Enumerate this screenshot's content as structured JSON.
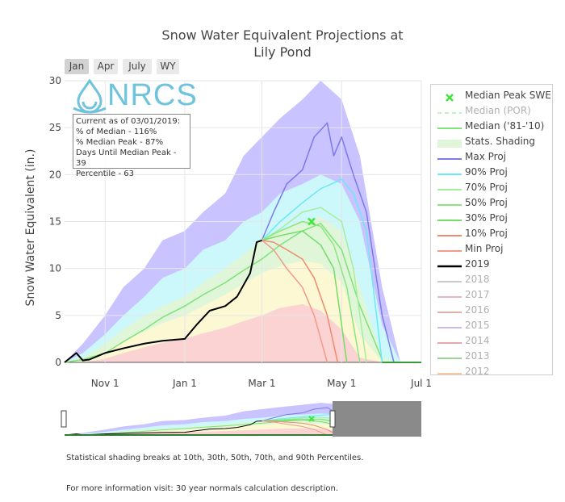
{
  "chart_data": {
    "type": "area",
    "title": "Snow Water Equivalent Projections at Lily Pond",
    "title_lines": [
      "Snow Water Equivalent Projections at",
      "Lily Pond"
    ],
    "ylabel": "Snow Water Equivalent (in.)",
    "xlabel": "",
    "ylim": [
      0,
      30
    ],
    "y_ticks": [
      0,
      5,
      10,
      15,
      20,
      25,
      30
    ],
    "xlim": [
      "Oct 1",
      "Jul 1"
    ],
    "x_ticks": [
      {
        "date": "Nov 1",
        "label": "Nov 1"
      },
      {
        "date": "Jan 1",
        "label": "Jan 1"
      },
      {
        "date": "Mar 1",
        "label": "Mar 1"
      },
      {
        "date": "May 1",
        "label": "May 1"
      },
      {
        "date": "Jul 1",
        "label": "Jul 1"
      }
    ],
    "grid": true,
    "legend_position": "right",
    "x_dates": [
      "Oct 1",
      "Oct 15",
      "Nov 1",
      "Nov 15",
      "Dec 1",
      "Dec 15",
      "Jan 1",
      "Jan 15",
      "Feb 1",
      "Feb 15",
      "Mar 1",
      "Mar 15",
      "Apr 1",
      "Apr 15",
      "May 1",
      "May 15",
      "Jun 1",
      "Jun 15",
      "Jul 1"
    ],
    "bands": [
      {
        "name": "max-band",
        "color": "#c9c3ff",
        "upper": [
          0,
          2,
          5,
          8,
          10,
          13,
          14,
          16,
          18,
          22,
          24,
          26,
          28,
          30,
          28,
          22,
          8,
          0,
          0
        ],
        "lower": [
          0,
          0,
          0,
          0,
          0,
          0,
          0,
          0,
          0,
          0,
          0,
          0,
          0,
          0,
          0,
          0,
          0,
          0,
          0
        ]
      },
      {
        "name": "p90-band",
        "color": "#ccf7fb",
        "upper": [
          0,
          1,
          3,
          5,
          7,
          9,
          10,
          12,
          13,
          15,
          16,
          18,
          19,
          20,
          19,
          15,
          4,
          0,
          0
        ],
        "lower": [
          0,
          0,
          0,
          0,
          0,
          0,
          0,
          0,
          0,
          0,
          0,
          0,
          0,
          0,
          0,
          0,
          0,
          0,
          0
        ]
      },
      {
        "name": "p70-band",
        "color": "#dff7d8",
        "upper": [
          0,
          0.5,
          2,
          3.5,
          5,
          6,
          7,
          8.5,
          10,
          11.5,
          13,
          14,
          15,
          15.5,
          14,
          8,
          0.5,
          0,
          0
        ],
        "lower": [
          0,
          0,
          0,
          0,
          0,
          0,
          0,
          0,
          0,
          0,
          0,
          0,
          0,
          0,
          0,
          0,
          0,
          0,
          0
        ]
      },
      {
        "name": "p50-band",
        "color": "#fbf8d3",
        "upper": [
          0,
          0.3,
          1.2,
          2.3,
          3.3,
          4.2,
          5,
          6,
          7.2,
          8.4,
          9.5,
          10.3,
          10.8,
          10.5,
          8.5,
          3,
          0,
          0,
          0
        ],
        "lower": [
          0,
          0,
          0,
          0,
          0,
          0,
          0,
          0,
          0,
          0,
          0,
          0,
          0,
          0,
          0,
          0,
          0,
          0,
          0
        ]
      },
      {
        "name": "p30-band",
        "color": "#fbd3d3",
        "upper": [
          0,
          0,
          0.4,
          1,
          1.6,
          2.1,
          2.5,
          3.1,
          3.7,
          4.4,
          5,
          5.8,
          6.2,
          5.5,
          3.5,
          0.5,
          0,
          0,
          0
        ],
        "lower": [
          0,
          0,
          0,
          0,
          0,
          0,
          0,
          0,
          0,
          0,
          0,
          0,
          0,
          0,
          0,
          0,
          0,
          0,
          0
        ]
      }
    ],
    "series": [
      {
        "name": "Median ('81-'10)",
        "color": "#7ee27a",
        "width": 1.5,
        "x": [
          "Oct 1",
          "Oct 15",
          "Nov 1",
          "Nov 15",
          "Dec 1",
          "Dec 15",
          "Jan 1",
          "Jan 15",
          "Feb 1",
          "Feb 15",
          "Mar 1",
          "Mar 15",
          "Apr 1",
          "Apr 15",
          "May 1",
          "May 15",
          "Jun 1"
        ],
        "y": [
          0,
          0.3,
          1,
          2.2,
          3.5,
          4.8,
          6,
          7.2,
          8.5,
          9.8,
          11,
          12.5,
          14,
          14.8,
          12,
          6,
          0.3
        ]
      },
      {
        "name": "Max Proj",
        "color": "#7b79ec",
        "width": 1.5,
        "x": [
          "Mar 1",
          "Mar 10",
          "Mar 20",
          "Apr 1",
          "Apr 10",
          "Apr 20",
          "Apr 25",
          "May 1",
          "May 10",
          "May 20",
          "Jun 1",
          "Jun 10"
        ],
        "y": [
          13,
          16,
          19,
          20.5,
          24,
          25.5,
          22,
          24,
          20,
          16,
          5,
          0
        ]
      },
      {
        "name": "90% Proj",
        "color": "#6ee7f7",
        "width": 1.5,
        "x": [
          "Mar 1",
          "Mar 15",
          "Apr 1",
          "Apr 15",
          "May 1",
          "May 10",
          "May 20",
          "Jun 1"
        ],
        "y": [
          13,
          15,
          17,
          18.5,
          19.5,
          18,
          14,
          0
        ]
      },
      {
        "name": "70% Proj",
        "color": "#a6ee9d",
        "width": 1.5,
        "x": [
          "Mar 1",
          "Mar 15",
          "Apr 1",
          "Apr 15",
          "May 1",
          "May 10",
          "May 20"
        ],
        "y": [
          13,
          14.2,
          16,
          16.5,
          15,
          10,
          0
        ]
      },
      {
        "name": "50% Proj",
        "color": "#8be67f",
        "width": 1.5,
        "x": [
          "Mar 1",
          "Mar 15",
          "Apr 1",
          "Apr 15",
          "Apr 25",
          "May 5",
          "May 15"
        ],
        "y": [
          13,
          14,
          15,
          14.5,
          12.5,
          8,
          0
        ]
      },
      {
        "name": "30% Proj",
        "color": "#74dc69",
        "width": 1.5,
        "x": [
          "Mar 1",
          "Mar 15",
          "Apr 1",
          "Apr 15",
          "Apr 25",
          "May 5"
        ],
        "y": [
          13,
          13.5,
          14,
          12.5,
          10,
          0
        ]
      },
      {
        "name": "10% Proj",
        "color": "#f08a6f",
        "width": 1.5,
        "x": [
          "Mar 1",
          "Mar 10",
          "Mar 20",
          "Apr 1",
          "Apr 10",
          "Apr 20",
          "Apr 28"
        ],
        "y": [
          13,
          12.8,
          12,
          11,
          9,
          5,
          0
        ]
      },
      {
        "name": "Min Proj",
        "color": "#f49a8a",
        "width": 1.5,
        "x": [
          "Mar 1",
          "Mar 10",
          "Mar 20",
          "Apr 1",
          "Apr 10",
          "Apr 20"
        ],
        "y": [
          13,
          12,
          10,
          8,
          5,
          0
        ]
      },
      {
        "name": "2019",
        "color": "#000000",
        "width": 2,
        "x": [
          "Oct 1",
          "Oct 10",
          "Oct 15",
          "Oct 20",
          "Nov 1",
          "Nov 15",
          "Dec 1",
          "Dec 15",
          "Jan 1",
          "Jan 10",
          "Jan 20",
          "Feb 1",
          "Feb 10",
          "Feb 20",
          "Feb 25",
          "Mar 1"
        ],
        "y": [
          0,
          1,
          0.2,
          0.3,
          1,
          1.5,
          2,
          2.3,
          2.5,
          4,
          5.5,
          6,
          7,
          9.5,
          12.8,
          13
        ]
      }
    ],
    "median_peak": {
      "label": "Median Peak SWE",
      "date": "Apr 8",
      "value": 15,
      "color": "#3ee83a"
    },
    "legend": [
      {
        "label": "Median Peak SWE",
        "color": "#3ee83a",
        "style": "marker",
        "dimmed": false
      },
      {
        "label": "Median (POR)",
        "color": "#bff5b8",
        "style": "dash",
        "dimmed": true
      },
      {
        "label": "Median ('81-'10)",
        "color": "#7ee27a",
        "style": "line",
        "dimmed": false
      },
      {
        "label": "Stats. Shading",
        "color": "#dff7d8",
        "style": "fill",
        "dimmed": false
      },
      {
        "label": "Max Proj",
        "color": "#7b79ec",
        "style": "line",
        "dimmed": false
      },
      {
        "label": "90% Proj",
        "color": "#6ee7f7",
        "style": "line",
        "dimmed": false
      },
      {
        "label": "70% Proj",
        "color": "#a6ee9d",
        "style": "line",
        "dimmed": false
      },
      {
        "label": "50% Proj",
        "color": "#8be67f",
        "style": "line",
        "dimmed": false
      },
      {
        "label": "30% Proj",
        "color": "#74dc69",
        "style": "line",
        "dimmed": false
      },
      {
        "label": "10% Proj",
        "color": "#f08a6f",
        "style": "line",
        "dimmed": false
      },
      {
        "label": "Min Proj",
        "color": "#f49a8a",
        "style": "line",
        "dimmed": false
      },
      {
        "label": "2019",
        "color": "#000000",
        "style": "line",
        "dimmed": false
      },
      {
        "label": "2018",
        "color": "#c8c8c8",
        "style": "line",
        "dimmed": true
      },
      {
        "label": "2017",
        "color": "#e8b7cf",
        "style": "line",
        "dimmed": true
      },
      {
        "label": "2016",
        "color": "#d9b3a8",
        "style": "line",
        "dimmed": true
      },
      {
        "label": "2015",
        "color": "#cdb8ea",
        "style": "line",
        "dimmed": true
      },
      {
        "label": "2014",
        "color": "#e8a8a8",
        "style": "line",
        "dimmed": true
      },
      {
        "label": "2013",
        "color": "#9bd39b",
        "style": "line",
        "dimmed": true
      },
      {
        "label": "2012",
        "color": "#f7c9a2",
        "style": "line",
        "dimmed": true
      }
    ]
  },
  "range_buttons": [
    "Jan",
    "Apr",
    "July",
    "WY"
  ],
  "active_range": "Jan",
  "logo": {
    "text": "NRCS",
    "icon": "water-drop-icon",
    "color": "#6fc3dd"
  },
  "info_box": {
    "line1": "Current as of 03/01/2019:",
    "line2": "% of Median - 116%",
    "line3": "% Median Peak - 87%",
    "line4": "Days Until Median Peak - 39",
    "line5": "Percentile - 63"
  },
  "navigator": {
    "selected_from": "Oct 1",
    "selected_to": "Jul 1"
  },
  "footnote1": "Statistical shading breaks at 10th, 30th, 50th, 70th, and 90th Percentiles.",
  "footnote2": "For more information visit: 30 year normals calculation description."
}
